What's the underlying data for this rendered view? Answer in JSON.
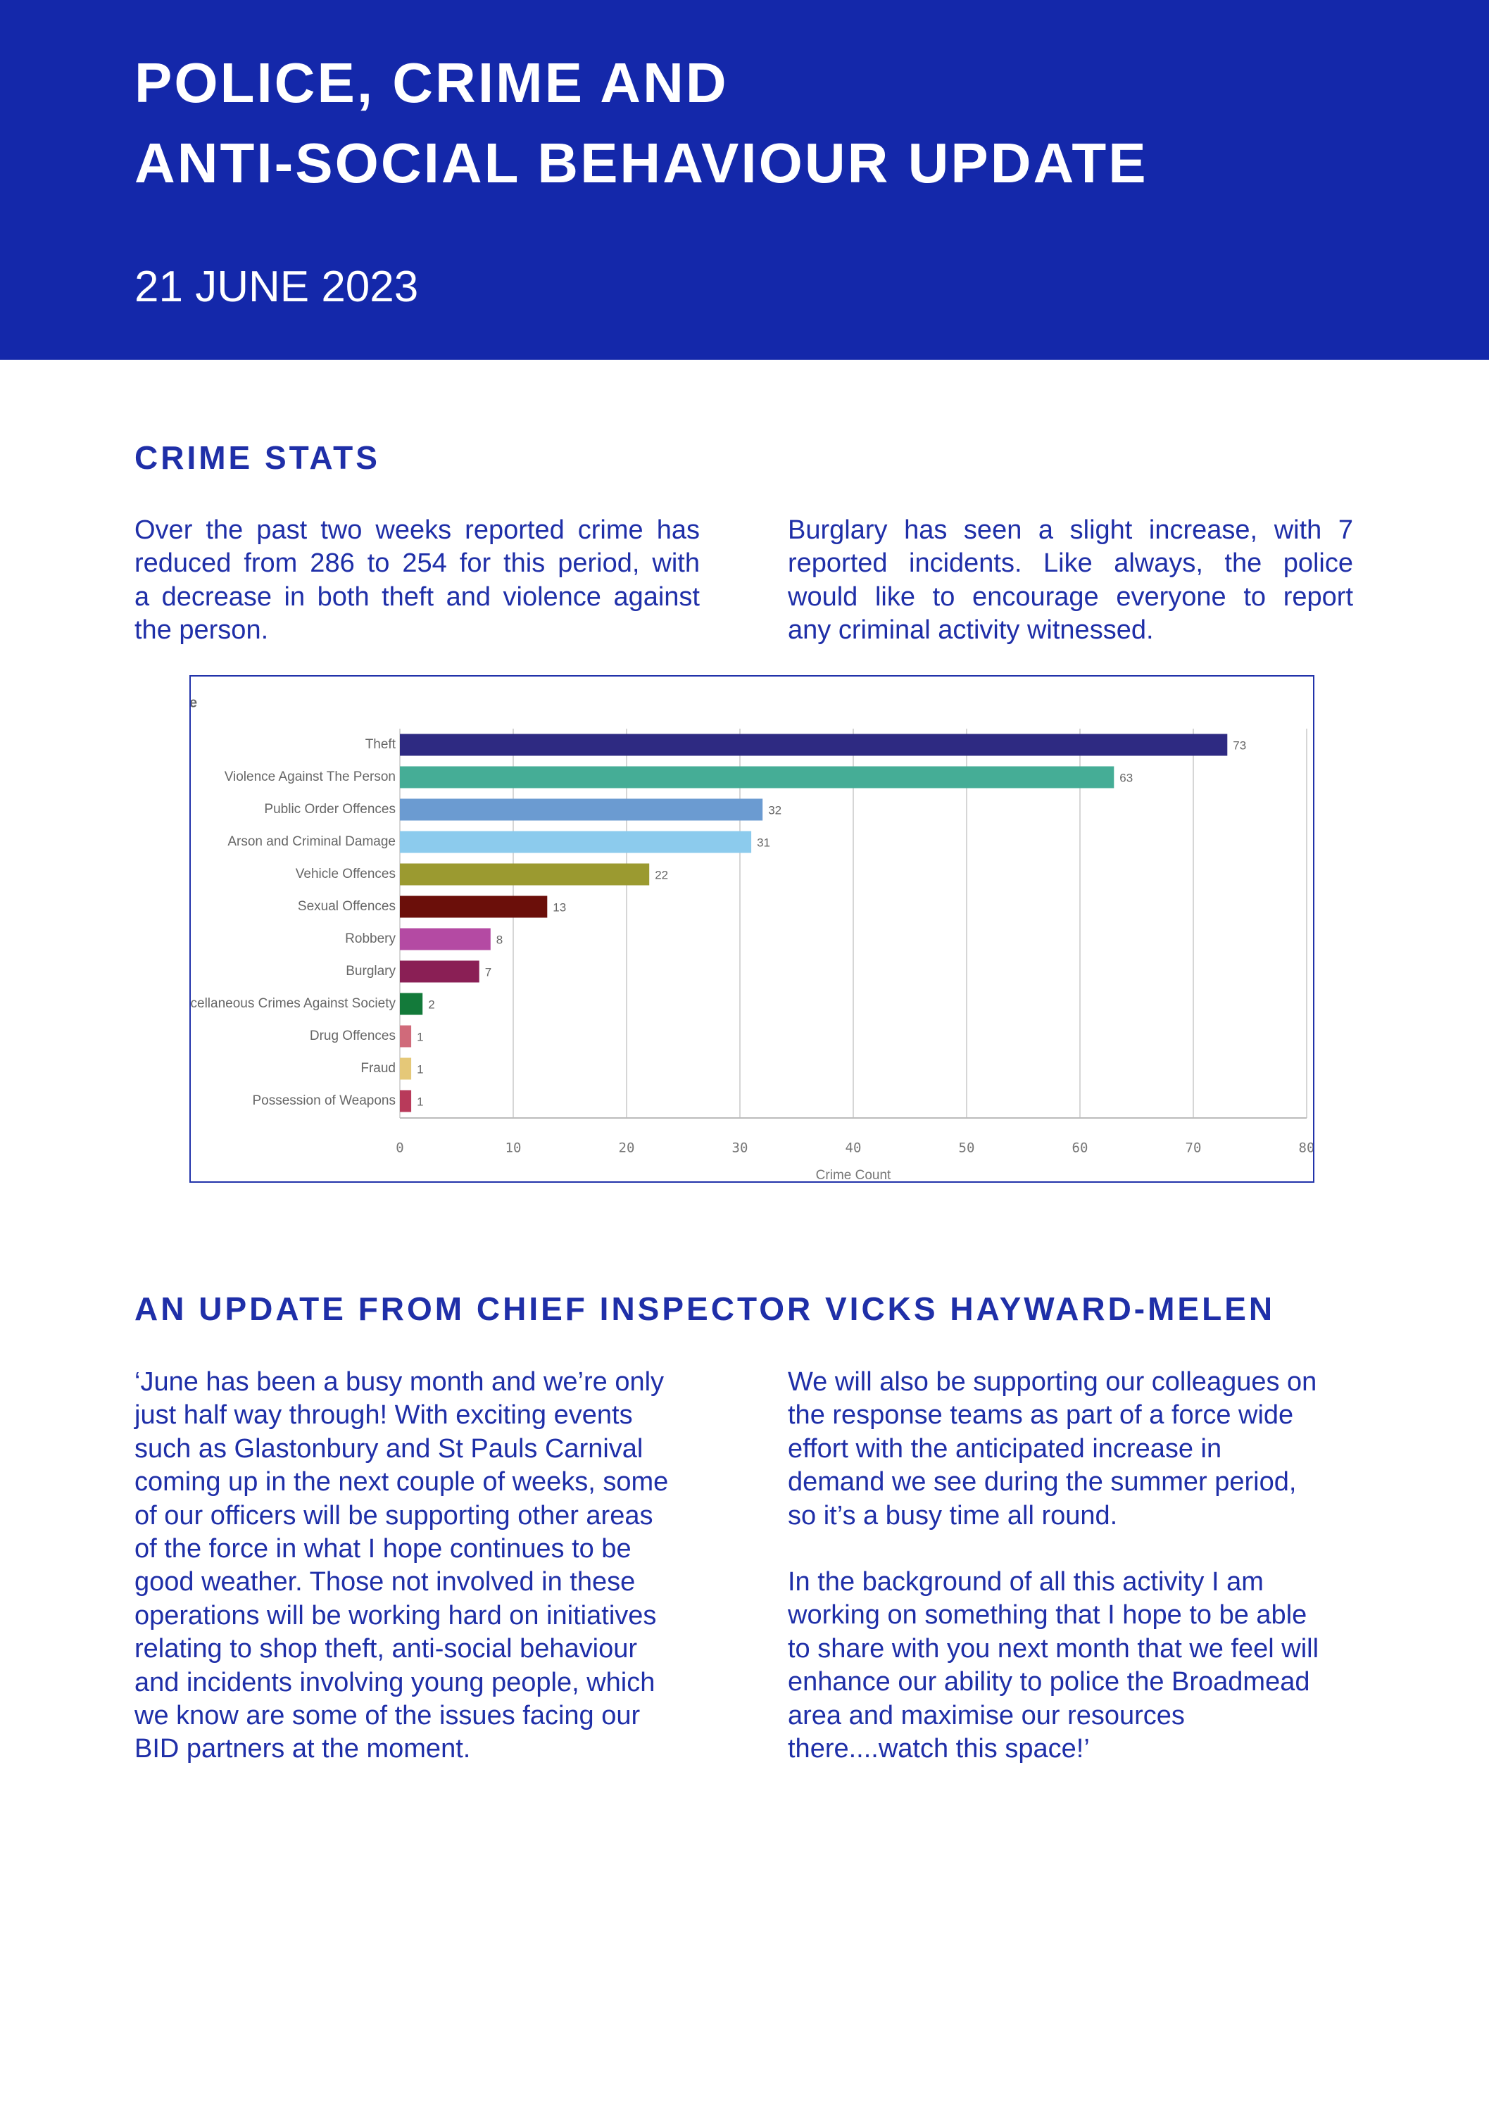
{
  "header": {
    "title_lines": [
      "POLICE, CRIME AND",
      "ANTI-SOCIAL BEHAVIOUR UPDATE"
    ],
    "date": "21 JUNE 2023"
  },
  "crime_stats": {
    "heading": "CRIME STATS",
    "left_lines": [
      "Over the past two weeks reported crime has",
      "reduced from 286 to 254 for this period, with",
      "a decrease in both theft and violence against",
      "the person."
    ],
    "right_lines": [
      "Burglary has seen a slight increase, with 7",
      "reported incidents. Like always, the police",
      "would like to encourage everyone to report",
      "any criminal activity witnessed."
    ]
  },
  "chart_data": {
    "type": "bar",
    "orientation": "horizontal",
    "title": "e",
    "categories": [
      "Theft",
      "Violence Against The Person",
      "Public Order Offences",
      "Arson and Criminal Damage",
      "Vehicle Offences",
      "Sexual Offences",
      "Robbery",
      "Burglary",
      "Miscellaneous Crimes Against Society",
      "Drug Offences",
      "Fraud",
      "Possession of Weapons"
    ],
    "values": [
      73,
      63,
      32,
      31,
      22,
      13,
      8,
      7,
      2,
      1,
      1,
      1
    ],
    "colors": [
      "#2e2a82",
      "#45ad96",
      "#6b9bd1",
      "#8ccbed",
      "#9b9a30",
      "#6b0f0a",
      "#b44aa3",
      "#8a1f55",
      "#137a3a",
      "#d06a7a",
      "#e5c878",
      "#b83a5a"
    ],
    "xlim": [
      0,
      80
    ],
    "xticks": [
      0,
      10,
      20,
      30,
      40,
      50,
      60,
      70,
      80
    ],
    "x_label": "Crime Count",
    "grid": true
  },
  "update": {
    "heading": "AN UPDATE FROM CHIEF INSPECTOR VICKS HAYWARD-MELEN",
    "left_lines": [
      "‘June has been a busy month and we’re only",
      "just half way through! With exciting events",
      "such as Glastonbury and St Pauls Carnival",
      "coming up in the next couple of weeks, some",
      "of our officers will be supporting other areas",
      "of the force in what I hope continues to be",
      "good weather. Those not involved in these",
      "operations will be working hard on initiatives",
      "relating to shop theft, anti-social behaviour",
      "and incidents involving young people, which",
      "we know are some of the issues facing our",
      "BID partners at the moment."
    ],
    "right_paragraphs": [
      [
        "We will also be supporting our colleagues on",
        "the response teams as part of a force wide",
        "effort with the anticipated increase in",
        "demand we see during the summer period,",
        "so it’s a busy time all round."
      ],
      [
        "In the background of all this activity I am",
        "working on something that I hope to be able",
        "to share with you next month that we feel will",
        "enhance our ability to police the Broadmead",
        "area and maximise our resources",
        "there....watch this space!’"
      ]
    ]
  }
}
